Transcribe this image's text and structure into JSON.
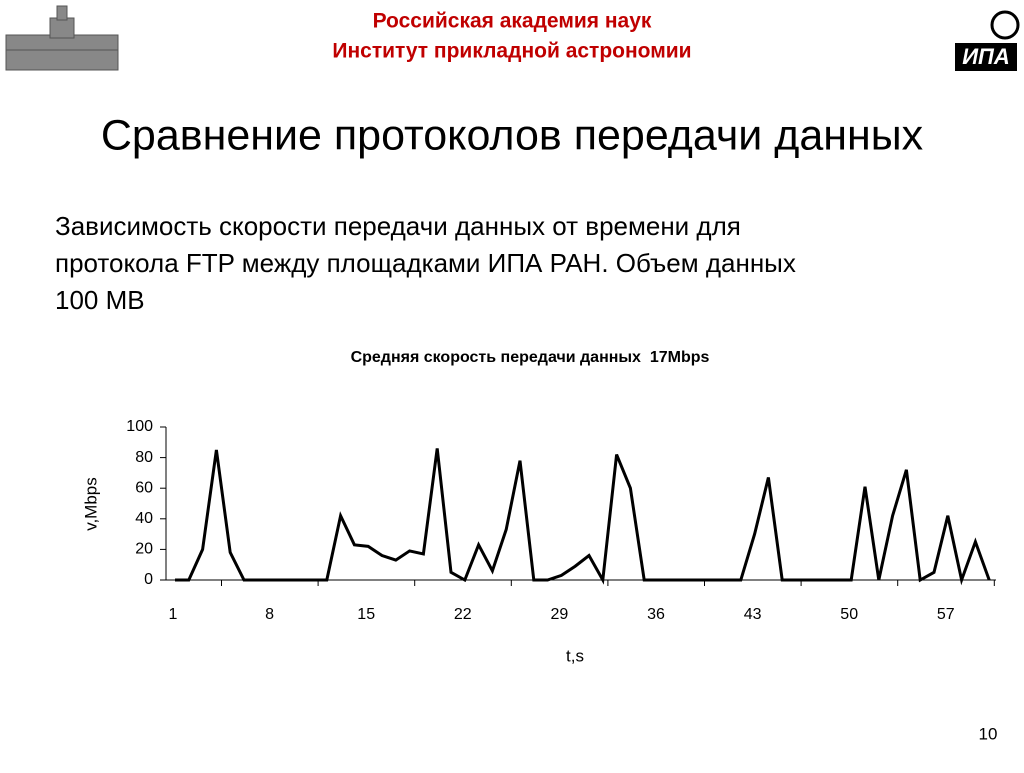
{
  "header": {
    "line1": "Российская академия наук",
    "line2": "Институт прикладной астрономии",
    "logo_text": "ИПА"
  },
  "title": "Сравнение протоколов передачи данных",
  "body": [
    "Зависимость скорости передачи данных от времени для",
    "протокола FTP между площадками ИПА РАН. Объем данных",
    "100 MB"
  ],
  "page_number": "10",
  "chart_data": {
    "type": "line",
    "title": "Средняя скорость передачи данных  17Mbps",
    "x_label": "t,s",
    "y_label": "v,Mbps",
    "categories": [
      1,
      null,
      null,
      null,
      null,
      null,
      null,
      8,
      null,
      null,
      null,
      null,
      null,
      null,
      15,
      null,
      null,
      null,
      null,
      null,
      null,
      22,
      null,
      null,
      null,
      null,
      null,
      null,
      29,
      null,
      null,
      null,
      null,
      null,
      null,
      36,
      null,
      null,
      null,
      null,
      null,
      null,
      43,
      null,
      null,
      null,
      null,
      null,
      null,
      50,
      null,
      null,
      null,
      null,
      null,
      null,
      57,
      null,
      null,
      null
    ],
    "series": [
      {
        "name": "v",
        "color": "#000000",
        "values": [
          0,
          0,
          20,
          85,
          18,
          0,
          0,
          0,
          0,
          0,
          0,
          0,
          42,
          23,
          22,
          16,
          13,
          19,
          17,
          86,
          5,
          0,
          23,
          6,
          33,
          78,
          0,
          0,
          3,
          9,
          16,
          0,
          82,
          60,
          0,
          0,
          0,
          0,
          0,
          0,
          0,
          0,
          30,
          67,
          0,
          0,
          0,
          0,
          0,
          0,
          61,
          0,
          42,
          72,
          0,
          5,
          42,
          0,
          25,
          0
        ]
      }
    ],
    "ylim": [
      0,
      100
    ],
    "yticks": [
      0,
      20,
      40,
      60,
      80,
      100
    ],
    "grid": false,
    "legend": false
  }
}
